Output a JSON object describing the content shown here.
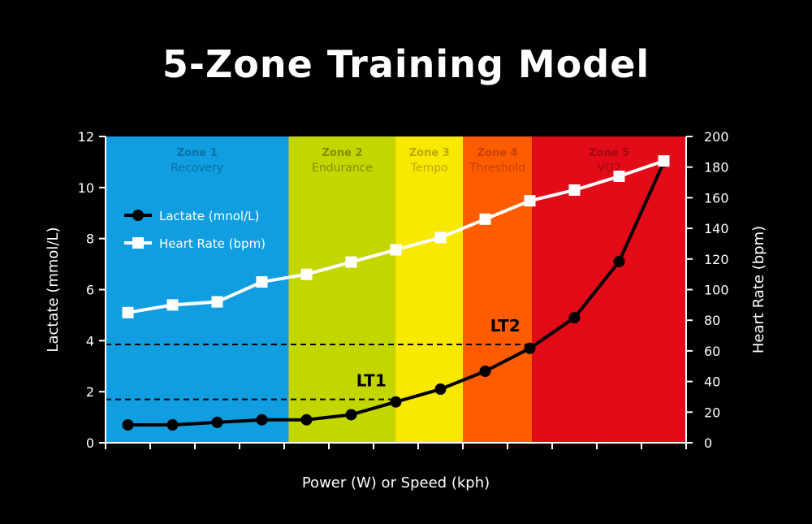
{
  "title": "5-Zone Training Model",
  "chart_data": {
    "type": "line",
    "title": "5-Zone Training Model",
    "xlabel": "Power (W) or Speed (kph)",
    "ylabel_left": "Lactate (mmol/L)",
    "ylabel_right": "Heart Rate (bpm)",
    "ylim_left": [
      0,
      12
    ],
    "ylim_right": [
      0,
      200
    ],
    "yticks_left": [
      0,
      2,
      4,
      6,
      8,
      10,
      12
    ],
    "yticks_right": [
      0,
      20,
      40,
      60,
      80,
      100,
      120,
      140,
      160,
      180,
      200
    ],
    "x_count": 13,
    "zones": [
      {
        "name": "Zone 1",
        "label": "Recovery",
        "start": -0.5,
        "end": 3.6,
        "color": "#109ee0",
        "text_color": "#0a6fa3"
      },
      {
        "name": "Zone 2",
        "label": "Endurance",
        "start": 3.6,
        "end": 6.0,
        "color": "#c4d600",
        "text_color": "#7f8e00"
      },
      {
        "name": "Zone 3",
        "label": "Tempo",
        "start": 6.0,
        "end": 7.5,
        "color": "#f9e900",
        "text_color": "#b8ab00"
      },
      {
        "name": "Zone 4",
        "label": "Threshold",
        "start": 7.5,
        "end": 9.05,
        "color": "#ff5b00",
        "text_color": "#c44200"
      },
      {
        "name": "Zone 5",
        "label": "VO2",
        "start": 9.05,
        "end": 12.5,
        "color": "#e20b17",
        "text_color": "#a3070f"
      }
    ],
    "series": [
      {
        "name": "Lactate (mnol/L)",
        "axis": "left",
        "color": "#000000",
        "marker": "circle",
        "x": [
          0,
          1,
          2,
          3,
          4,
          5,
          6,
          7,
          8,
          9,
          10,
          11,
          12
        ],
        "values": [
          0.7,
          0.7,
          0.8,
          0.9,
          0.9,
          1.1,
          1.6,
          2.1,
          2.8,
          3.7,
          4.9,
          7.1,
          11.0
        ]
      },
      {
        "name": "Heart Rate (bpm)",
        "axis": "right",
        "color": "#ffffff",
        "marker": "square",
        "x": [
          0,
          1,
          2,
          3,
          4,
          5,
          6,
          7,
          8,
          9,
          10,
          11,
          12
        ],
        "values": [
          85,
          90,
          92,
          105,
          110,
          118,
          126,
          134,
          146,
          158,
          165,
          174,
          184
        ]
      }
    ],
    "thresholds": [
      {
        "label": "LT1",
        "value": 1.7,
        "end_x": 6
      },
      {
        "label": "LT2",
        "value": 3.85,
        "end_x": 9
      }
    ],
    "grid": false,
    "legend": "top-left"
  }
}
